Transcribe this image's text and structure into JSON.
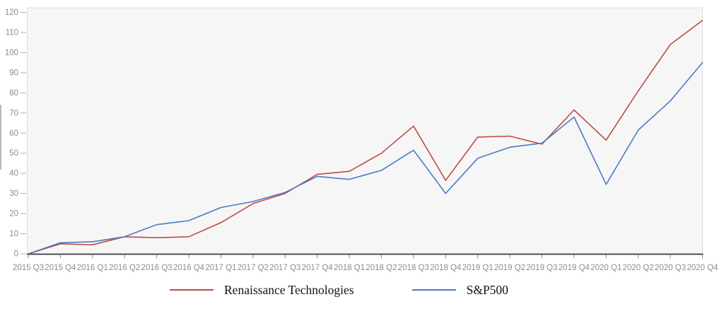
{
  "chart_data": {
    "type": "line",
    "title": "",
    "xlabel": "",
    "ylabel": "",
    "categories": [
      "2015 Q3",
      "2015 Q4",
      "2016 Q1",
      "2016 Q2",
      "2016 Q3",
      "2016 Q4",
      "2017 Q1",
      "2017 Q2",
      "2017 Q3",
      "2017 Q4",
      "2018 Q1",
      "2018 Q2",
      "2018 Q3",
      "2018 Q4",
      "2019 Q1",
      "2019 Q2",
      "2019 Q3",
      "2019 Q4",
      "2020 Q1",
      "2020 Q2",
      "2020 Q3",
      "2020 Q4"
    ],
    "series": [
      {
        "name": "Renaissance Technologies",
        "color": "#bf4b43",
        "values": [
          0,
          5,
          4.5,
          8.5,
          8,
          8.5,
          15.5,
          25,
          30,
          39.5,
          41,
          50,
          63.5,
          36.5,
          58,
          58.5,
          54.5,
          71.5,
          56.5,
          81,
          104,
          116
        ]
      },
      {
        "name": "S&P500",
        "color": "#4a7cc4",
        "values": [
          0,
          5.5,
          6,
          8.5,
          14.5,
          16.5,
          23,
          26,
          30.5,
          38.5,
          37,
          41.5,
          51.5,
          30,
          47.5,
          53,
          55,
          68,
          34.5,
          61.5,
          76,
          95
        ]
      }
    ],
    "ylim": [
      0,
      120
    ],
    "ytick_step": 10,
    "ytick_labels": [
      "0",
      "10",
      "20",
      "30",
      "40",
      "50",
      "60",
      "70",
      "80",
      "90",
      "100",
      "110",
      "120"
    ],
    "grid": false,
    "legend_position": "bottom",
    "colors": {
      "plot_background": "#f6f6f6",
      "plot_border": "#dcdcdc",
      "axis_line": "#3a3a3a",
      "tick_mark": "#aeaeae",
      "tick_label": "#8c8c8c"
    }
  },
  "legend": {
    "items": [
      {
        "label": "Renaissance Technologies",
        "color": "#bf4b43"
      },
      {
        "label": "S&P500",
        "color": "#4a7cc4"
      }
    ]
  }
}
